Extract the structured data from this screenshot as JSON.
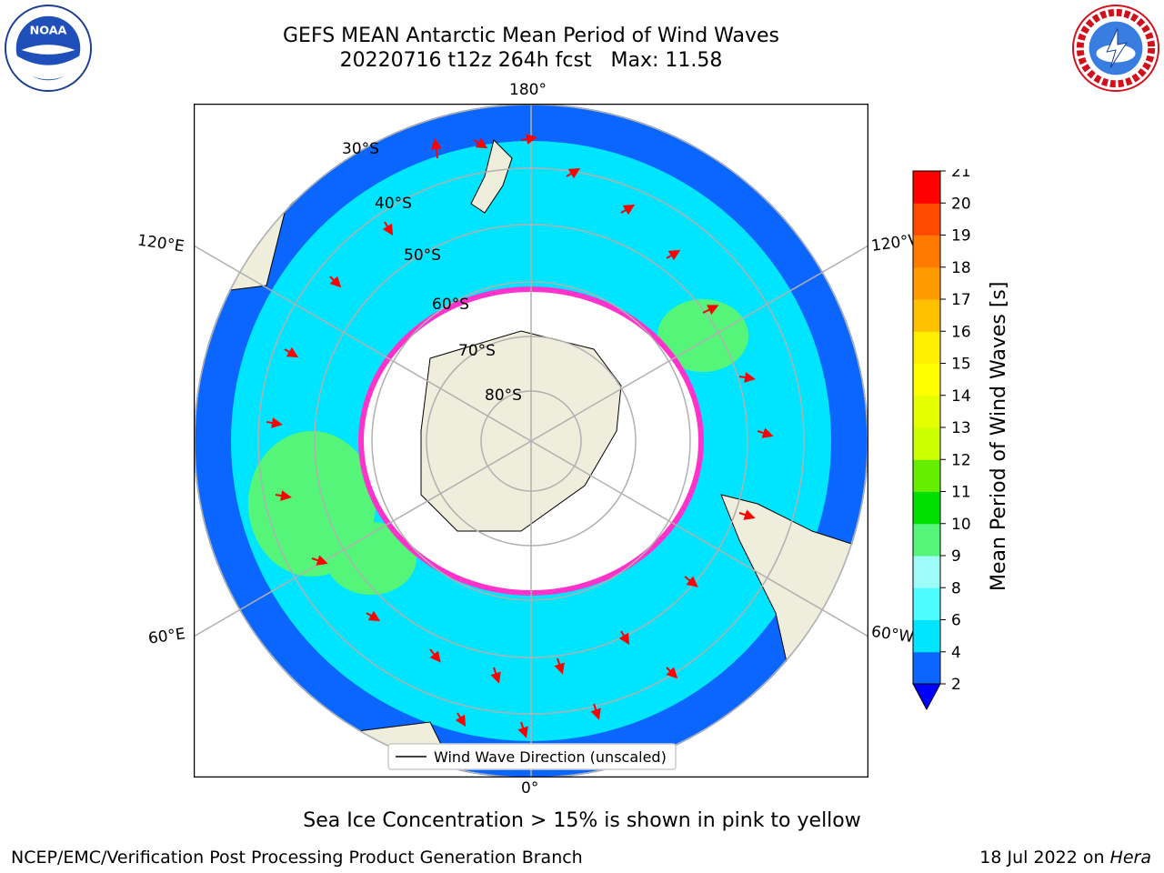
{
  "header": {
    "title_line1": "GEFS MEAN Antarctic Mean Period of Wind Waves",
    "title_line2": "20220716 t12z 264h fcst   Max: 11.58"
  },
  "map": {
    "longitude_labels": {
      "top": "180°",
      "bottom": "0°",
      "left_upper": "120°E",
      "left_lower": "60°E",
      "right_upper": "120°W",
      "right_lower": "60°W"
    },
    "latitude_labels": [
      "30°S",
      "40°S",
      "50°S",
      "60°S",
      "70°S",
      "80°S"
    ],
    "legend_label": "Wind Wave Direction (unscaled)"
  },
  "colorbar": {
    "label": "Mean Period of Wind Waves [s]",
    "ticks": [
      "2",
      "4",
      "6",
      "8",
      "9",
      "10",
      "11",
      "12",
      "13",
      "14",
      "15",
      "16",
      "17",
      "18",
      "19",
      "20",
      "21"
    ],
    "colors": [
      "#0a66ff",
      "#00e5ff",
      "#4dfcff",
      "#9ffdf9",
      "#55f57a",
      "#00e000",
      "#66ee00",
      "#ccff00",
      "#e6ff00",
      "#ffff00",
      "#ffee00",
      "#ffc000",
      "#ff9a00",
      "#ff7a00",
      "#ff4a00",
      "#ff0000"
    ],
    "under_color": "#0000ff"
  },
  "footer": {
    "note": "Sea Ice Concentration > 15% is shown in pink to yellow",
    "left_credit": "NCEP/EMC/Verification Post Processing Product Generation Branch",
    "right_date": "18 Jul 2022 on",
    "right_host": "Hera"
  },
  "colors": {
    "land": "#efeedc",
    "ocean_low": "#0a66ff",
    "ocean_mid": "#00e5ff",
    "ice_edge": "#ff33cc",
    "arrow": "#ff0000"
  }
}
